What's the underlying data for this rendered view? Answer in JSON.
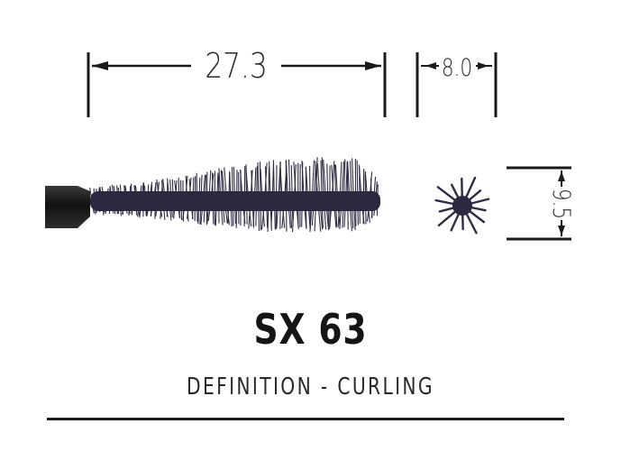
{
  "product": {
    "model": "SX 63",
    "description": "DEFINITION - CURLING"
  },
  "dimensions": {
    "length": "27.3",
    "tip_width": "8.0",
    "diameter": "9.5"
  },
  "colors": {
    "ink": "#1a1a1a",
    "brush_core": "#2b2840",
    "bristle": "#2f2c44",
    "handle": "#1c1c1c"
  }
}
